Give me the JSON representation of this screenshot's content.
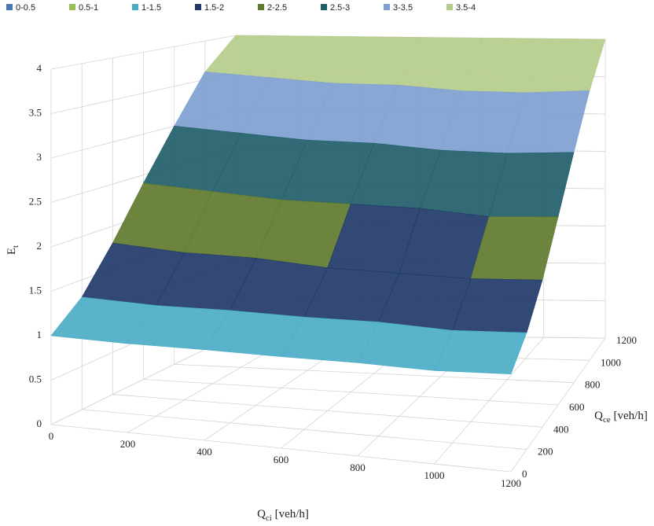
{
  "chart_data": {
    "type": "surface",
    "legend": [
      {
        "name": "0-0.5",
        "color": "#4a7ab4"
      },
      {
        "name": "0.5-1",
        "color": "#9bbb59"
      },
      {
        "name": "1-1.5",
        "color": "#4bacc6"
      },
      {
        "name": "1.5-2",
        "color": "#1f3a68"
      },
      {
        "name": "2-2.5",
        "color": "#5f7a2e"
      },
      {
        "name": "2.5-3",
        "color": "#215e6a"
      },
      {
        "name": "3-3.5",
        "color": "#7fa0d0"
      },
      {
        "name": "3.5-4",
        "color": "#b5cc8a"
      }
    ],
    "band_width": 0.5,
    "x": [
      0,
      200,
      400,
      600,
      800,
      1000,
      1200
    ],
    "y": [
      0,
      200,
      400,
      600,
      800,
      1000,
      1200
    ],
    "z": [
      [
        1,
        1,
        1.02,
        1.03,
        1.05,
        1.05,
        1.1
      ],
      [
        1.3,
        1.28,
        1.3,
        1.3,
        1.32,
        1.3,
        1.35
      ],
      [
        1.8,
        1.75,
        1.75,
        1.7,
        1.7,
        1.7,
        1.75
      ],
      [
        2.4,
        2.35,
        2.3,
        2.3,
        2.3,
        2.25,
        2.3
      ],
      [
        3.0,
        2.95,
        2.9,
        2.9,
        2.85,
        2.85,
        2.9
      ],
      [
        3.6,
        3.55,
        3.5,
        3.5,
        3.45,
        3.45,
        3.5
      ],
      [
        4,
        4,
        4,
        4,
        4,
        4,
        4
      ]
    ],
    "xlim": [
      0,
      1200
    ],
    "ylim": [
      0,
      1200
    ],
    "zlim": [
      0,
      4
    ],
    "xticks": [
      0,
      200,
      400,
      600,
      800,
      1000,
      1200
    ],
    "yticks": [
      0,
      200,
      400,
      600,
      800,
      1000,
      1200
    ],
    "zticks": [
      0,
      0.5,
      1,
      1.5,
      2,
      2.5,
      3,
      3.5,
      4
    ],
    "xlabel": {
      "main": "Q",
      "sub": "ci",
      "unit": " [veh/h]"
    },
    "ylabel": {
      "main": "Q",
      "sub": "ce",
      "unit": " [veh/h]"
    },
    "zlabel": {
      "main": "E",
      "sub": "t"
    },
    "grid": true
  }
}
